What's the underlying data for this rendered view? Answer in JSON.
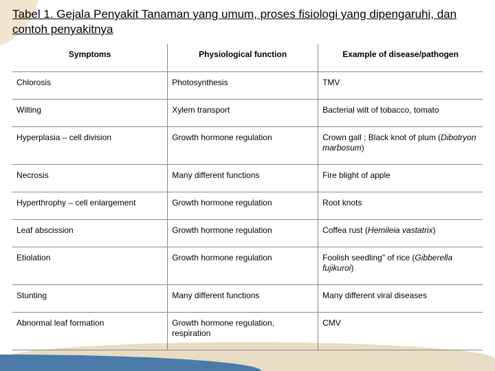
{
  "title": "Tabel 1. Gejala Penyakit  Tanaman yang umum, proses fisiologi yang dipengaruhi, dan contoh penyakitnya",
  "table": {
    "headers": [
      "Symptoms",
      "Physiological function",
      "Example of disease/pathogen"
    ],
    "rows": [
      {
        "symptom": "Chlorosis",
        "func": "Photosynthesis",
        "example_html": "TMV"
      },
      {
        "symptom": "Wilting",
        "func": "Xylem transport",
        "example_html": "Bacterial wilt of tobacco, tomato"
      },
      {
        "symptom": "Hyperplasia – cell division",
        "func": "Growth hormone regulation",
        "example_html": "Crown gall ; Black knot of plum (<em>Dibotryon marbosum</em>)"
      },
      {
        "symptom": "Necrosis",
        "func": "Many different functions",
        "example_html": "Fire blight of apple"
      },
      {
        "symptom": "Hyperthrophy – cell enlargement",
        "func": "Growth hormone regulation",
        "example_html": "Root knots"
      },
      {
        "symptom": "Leaf abscission",
        "func": "Growth hormone regulation",
        "example_html": "Coffea rust (<em>Hemileia vastatrix</em>)"
      },
      {
        "symptom": "Etiolation",
        "func": "Growth hormone regulation",
        "example_html": "Foolish seedling\" of rice (<em>Gibberella fujikuroi</em>)"
      },
      {
        "symptom": "Stunting",
        "func": "Many different functions",
        "example_html": "Many different viral diseases"
      },
      {
        "symptom": "Abnormal leaf formation",
        "func": "Growth hormone regulation, respiration",
        "example_html": "CMV"
      }
    ],
    "col_widths_pct": [
      33,
      32,
      35
    ],
    "border_color": "#888888",
    "font_size_pt": 9,
    "header_font_size_pt": 9,
    "text_color": "#000000"
  },
  "background": {
    "page_color": "#ffffff",
    "top_curve_color": "#f2e6d0",
    "bottom_beige_color": "#e8dcc4",
    "bottom_blue_color": "#4a7ba8"
  },
  "title_style": {
    "font_size_pt": 13,
    "color": "#000000",
    "underline": true
  }
}
